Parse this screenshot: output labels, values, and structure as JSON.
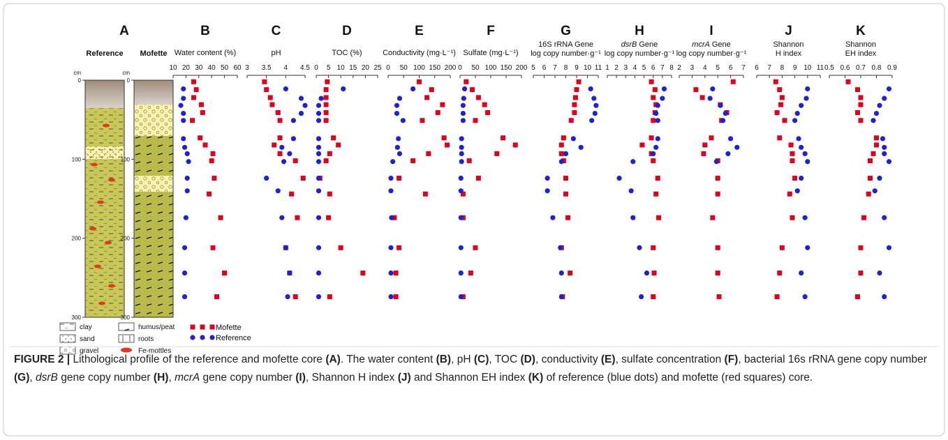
{
  "panel_a": {
    "letter": "A",
    "columns": [
      "Reference",
      "Mofette"
    ],
    "depth_unit": "cm",
    "depth_lim": [
      0,
      300
    ],
    "depth_ticks": [
      0,
      100,
      200,
      300
    ],
    "legend": [
      "clay",
      "sand",
      "gravel",
      "humus/peat",
      "roots",
      "Fe-mottles"
    ]
  },
  "chart_data": [
    {
      "type": "scatter",
      "letter": "B",
      "title_lines": [
        "Water content (%)"
      ],
      "xlim": [
        10,
        60
      ],
      "xticks": [
        10,
        20,
        30,
        40,
        50,
        60
      ],
      "ylim": [
        0,
        300
      ],
      "series": [
        {
          "name": "Mofette",
          "color": "#e2001a",
          "marker": "square",
          "x": [
            26,
            28,
            26,
            32,
            33,
            25,
            31,
            35,
            41,
            40,
            42,
            38,
            47,
            41,
            50,
            44
          ],
          "y": [
            2,
            12,
            22,
            31,
            41,
            51,
            73,
            82,
            93,
            102,
            124,
            144,
            174,
            212,
            244,
            274
          ]
        },
        {
          "name": "Reference",
          "color": "#1f22d4",
          "marker": "circle",
          "x": [
            18,
            18,
            16,
            18,
            18,
            18,
            19,
            21,
            22,
            21,
            21,
            20,
            19,
            19,
            19
          ],
          "y": [
            11,
            23,
            32,
            42,
            51,
            74,
            85,
            93,
            103,
            124,
            140,
            174,
            212,
            244,
            274
          ]
        }
      ]
    },
    {
      "type": "scatter",
      "letter": "C",
      "title_lines": [
        "pH"
      ],
      "xlim": [
        3,
        4.5
      ],
      "xticks": [
        3,
        3.5,
        4,
        4.5
      ],
      "ylim": [
        0,
        300
      ],
      "series": [
        {
          "name": "Mofette",
          "color": "#e2001a",
          "marker": "square",
          "x": [
            3.45,
            3.5,
            3.6,
            3.65,
            3.8,
            3.85,
            3.85,
            3.7,
            3.85,
            4.25,
            4.45,
            4.15,
            4.3,
            4.0,
            4.1,
            4.25
          ],
          "y": [
            2,
            12,
            22,
            31,
            41,
            51,
            73,
            82,
            93,
            102,
            124,
            144,
            174,
            212,
            244,
            274
          ]
        },
        {
          "name": "Reference",
          "color": "#1f22d4",
          "marker": "circle",
          "x": [
            4.0,
            4.4,
            4.5,
            4.4,
            4.2,
            4.2,
            3.9,
            4.1,
            3.95,
            3.5,
            3.8,
            3.9,
            4.0,
            4.1,
            4.05
          ],
          "y": [
            11,
            23,
            32,
            42,
            51,
            74,
            85,
            93,
            103,
            124,
            140,
            174,
            212,
            244,
            274
          ]
        }
      ]
    },
    {
      "type": "scatter",
      "letter": "D",
      "title_lines": [
        "TOC (%)"
      ],
      "xlim": [
        0,
        25
      ],
      "xticks": [
        0,
        5,
        10,
        15,
        20,
        25
      ],
      "ylim": [
        0,
        300
      ],
      "series": [
        {
          "name": "Mofette",
          "color": "#e2001a",
          "marker": "square",
          "x": [
            4.5,
            4,
            4,
            4,
            4,
            4,
            7,
            9,
            5.5,
            4,
            1.5,
            5.5,
            5,
            10,
            19,
            5.5
          ],
          "y": [
            2,
            12,
            22,
            31,
            41,
            51,
            73,
            82,
            93,
            102,
            124,
            144,
            174,
            212,
            244,
            274
          ]
        },
        {
          "name": "Reference",
          "color": "#1f22d4",
          "marker": "circle",
          "x": [
            11,
            2,
            1,
            1,
            1,
            1,
            1,
            1,
            1,
            1,
            1,
            1,
            1,
            1,
            1
          ],
          "y": [
            11,
            23,
            32,
            42,
            51,
            74,
            85,
            93,
            103,
            124,
            140,
            174,
            212,
            244,
            274
          ]
        }
      ]
    },
    {
      "type": "scatter",
      "letter": "E",
      "title_lines": [
        "Conductivity (mg·L⁻¹)"
      ],
      "xlim": [
        0,
        200
      ],
      "xticks": [
        0,
        50,
        100,
        150,
        200
      ],
      "ylim": [
        0,
        300
      ],
      "series": [
        {
          "name": "Mofette",
          "color": "#e2001a",
          "marker": "square",
          "x": [
            100,
            140,
            125,
            175,
            160,
            110,
            180,
            190,
            130,
            80,
            35,
            120,
            20,
            35,
            25,
            25
          ],
          "y": [
            2,
            12,
            22,
            31,
            41,
            51,
            73,
            82,
            93,
            102,
            124,
            144,
            174,
            212,
            244,
            274
          ]
        },
        {
          "name": "Reference",
          "color": "#1f22d4",
          "marker": "circle",
          "x": [
            80,
            37,
            28,
            28,
            48,
            33,
            30,
            37,
            15,
            9,
            9,
            11,
            9,
            9,
            9
          ],
          "y": [
            11,
            23,
            32,
            42,
            51,
            74,
            85,
            93,
            103,
            124,
            140,
            174,
            212,
            244,
            274
          ]
        }
      ]
    },
    {
      "type": "scatter",
      "letter": "F",
      "title_lines": [
        "Sulfate (mg·L⁻¹)"
      ],
      "xlim": [
        0,
        200
      ],
      "xticks": [
        0,
        50,
        100,
        150,
        200
      ],
      "ylim": [
        0,
        300
      ],
      "series": [
        {
          "name": "Mofette",
          "color": "#e2001a",
          "marker": "square",
          "x": [
            20,
            40,
            60,
            80,
            90,
            50,
            140,
            180,
            120,
            30,
            60,
            10,
            10,
            50,
            35,
            10
          ],
          "y": [
            2,
            12,
            22,
            31,
            41,
            51,
            73,
            82,
            93,
            102,
            124,
            144,
            174,
            212,
            244,
            274
          ]
        },
        {
          "name": "Reference",
          "color": "#1f22d4",
          "marker": "circle",
          "x": [
            15,
            12,
            10,
            10,
            10,
            5,
            5,
            5,
            5,
            3,
            3,
            3,
            3,
            3,
            3
          ],
          "y": [
            11,
            23,
            32,
            42,
            51,
            74,
            85,
            93,
            103,
            124,
            140,
            174,
            212,
            244,
            274
          ]
        }
      ]
    },
    {
      "type": "scatter",
      "letter": "G",
      "title_lines": [
        "16S rRNA Gene",
        "log copy number·g⁻¹"
      ],
      "xlim": [
        5,
        11
      ],
      "xticks": [
        5,
        6,
        7,
        8,
        9,
        10,
        11
      ],
      "ylim": [
        0,
        300
      ],
      "series": [
        {
          "name": "Mofette",
          "color": "#e2001a",
          "marker": "square",
          "x": [
            9.2,
            9.0,
            8.9,
            8.8,
            8.8,
            8.5,
            7.8,
            7.6,
            7.6,
            7.8,
            8.0,
            8.0,
            8.2,
            7.6,
            8.4,
            7.7
          ],
          "y": [
            2,
            12,
            22,
            31,
            41,
            51,
            73,
            82,
            93,
            102,
            124,
            144,
            174,
            212,
            244,
            274
          ]
        },
        {
          "name": "Reference",
          "color": "#1f22d4",
          "marker": "circle",
          "x": [
            10.3,
            10.6,
            10.8,
            10.7,
            10.4,
            8.7,
            9.4,
            8.0,
            7.6,
            6.3,
            6.3,
            6.8,
            7.5,
            7.6,
            7.6
          ],
          "y": [
            11,
            23,
            32,
            42,
            51,
            74,
            85,
            93,
            103,
            124,
            140,
            174,
            212,
            244,
            274
          ]
        }
      ]
    },
    {
      "type": "scatter",
      "letter": "H",
      "gene": "dsrB",
      "title_lines": [
        "Gene",
        "log copy number·g⁻¹"
      ],
      "xlim": [
        1,
        8
      ],
      "xticks": [
        1,
        2,
        3,
        4,
        5,
        6,
        7,
        8
      ],
      "ylim": [
        0,
        300
      ],
      "series": [
        {
          "name": "Mofette",
          "color": "#e2001a",
          "marker": "square",
          "x": [
            5.8,
            6.2,
            6.0,
            6.3,
            6.2,
            6.0,
            5.8,
            4.8,
            5.8,
            6.0,
            6.5,
            6.3,
            6.6,
            6.0,
            6.1,
            6.0
          ],
          "y": [
            2,
            12,
            22,
            31,
            41,
            51,
            73,
            82,
            93,
            102,
            124,
            144,
            174,
            212,
            244,
            274
          ]
        },
        {
          "name": "Reference",
          "color": "#1f22d4",
          "marker": "circle",
          "x": [
            7.2,
            7.0,
            6.5,
            6.3,
            6.5,
            6.5,
            6.3,
            6.0,
            3.8,
            2.3,
            3.6,
            3.8,
            4.5,
            5.3,
            4.7
          ],
          "y": [
            11,
            23,
            32,
            42,
            51,
            74,
            85,
            93,
            103,
            124,
            140,
            174,
            212,
            244,
            274
          ]
        }
      ]
    },
    {
      "type": "scatter",
      "letter": "I",
      "gene": "mcrA",
      "title_lines": [
        "Gene",
        "log copy number·g⁻¹"
      ],
      "xlim": [
        2,
        7
      ],
      "xticks": [
        2,
        3,
        4,
        5,
        6,
        7
      ],
      "ylim": [
        0,
        300
      ],
      "series": [
        {
          "name": "Mofette",
          "color": "#e2001a",
          "marker": "square",
          "x": [
            6.2,
            3.3,
            3.8,
            5.2,
            5.7,
            5.3,
            4.5,
            4.0,
            3.9,
            5.0,
            5.0,
            5.0,
            4.6,
            5.0,
            5.0,
            5.1
          ],
          "y": [
            2,
            12,
            22,
            31,
            41,
            51,
            73,
            82,
            93,
            102,
            124,
            144,
            174,
            212,
            244,
            274
          ]
        },
        {
          "name": "Reference",
          "color": "#1f22d4",
          "marker": "circle",
          "x": [
            4.6,
            4.4,
            5.2,
            5.6,
            5.4,
            6.0,
            6.5,
            5.8,
            4.9,
            null,
            null,
            null,
            null,
            null,
            null
          ],
          "y": [
            11,
            23,
            32,
            42,
            51,
            74,
            85,
            93,
            103,
            124,
            140,
            174,
            212,
            244,
            274
          ]
        }
      ]
    },
    {
      "type": "scatter",
      "letter": "J",
      "title_lines": [
        "Shannon",
        "H index"
      ],
      "xlim": [
        6,
        11
      ],
      "xticks": [
        6,
        7,
        8,
        9,
        10,
        11
      ],
      "ylim": [
        0,
        300
      ],
      "series": [
        {
          "name": "Mofette",
          "color": "#e2001a",
          "marker": "square",
          "x": [
            7.5,
            7.8,
            8.0,
            7.9,
            7.6,
            8.2,
            7.8,
            8.7,
            8.8,
            8.8,
            9.0,
            8.6,
            8.8,
            8.0,
            7.8,
            7.6
          ],
          "y": [
            2,
            12,
            22,
            31,
            41,
            51,
            73,
            82,
            93,
            102,
            124,
            144,
            174,
            212,
            244,
            274
          ]
        },
        {
          "name": "Reference",
          "color": "#1f22d4",
          "marker": "circle",
          "x": [
            10.0,
            9.9,
            9.5,
            9.2,
            9.0,
            9.3,
            9.5,
            9.8,
            10.0,
            9.5,
            9.2,
            9.8,
            10.0,
            9.5,
            9.8
          ],
          "y": [
            11,
            23,
            32,
            42,
            51,
            74,
            85,
            93,
            103,
            124,
            140,
            174,
            212,
            244,
            274
          ]
        }
      ]
    },
    {
      "type": "scatter",
      "letter": "K",
      "title_lines": [
        "Shannon",
        "EH index"
      ],
      "xlim": [
        0.5,
        0.9
      ],
      "xticks": [
        0.5,
        0.6,
        0.7,
        0.8,
        0.9
      ],
      "ylim": [
        0,
        300
      ],
      "series": [
        {
          "name": "Mofette",
          "color": "#e2001a",
          "marker": "square",
          "x": [
            0.62,
            0.68,
            0.7,
            0.7,
            0.68,
            0.7,
            0.8,
            0.8,
            0.78,
            0.76,
            0.76,
            0.75,
            0.72,
            0.7,
            0.7,
            0.68
          ],
          "y": [
            2,
            12,
            22,
            31,
            41,
            51,
            73,
            82,
            93,
            102,
            124,
            144,
            174,
            212,
            244,
            274
          ]
        },
        {
          "name": "Reference",
          "color": "#1f22d4",
          "marker": "circle",
          "x": [
            0.88,
            0.85,
            0.82,
            0.8,
            0.78,
            0.84,
            0.85,
            0.85,
            0.88,
            0.82,
            0.79,
            0.85,
            0.88,
            0.82,
            0.85
          ],
          "y": [
            11,
            23,
            32,
            42,
            51,
            74,
            85,
            93,
            103,
            124,
            140,
            174,
            212,
            244,
            274
          ]
        }
      ]
    }
  ],
  "caption": {
    "label": "FIGURE 2 |",
    "segments": [
      {
        "text": " Lithological profile of the reference and mofette core ",
        "style": "n"
      },
      {
        "text": "(A)",
        "style": "b"
      },
      {
        "text": ". The water content ",
        "style": "n"
      },
      {
        "text": "(B)",
        "style": "b"
      },
      {
        "text": ", pH ",
        "style": "n"
      },
      {
        "text": "(C)",
        "style": "b"
      },
      {
        "text": ", TOC ",
        "style": "n"
      },
      {
        "text": "(D)",
        "style": "b"
      },
      {
        "text": ", conductivity ",
        "style": "n"
      },
      {
        "text": "(E)",
        "style": "b"
      },
      {
        "text": ", sulfate concentration ",
        "style": "n"
      },
      {
        "text": "(F)",
        "style": "b"
      },
      {
        "text": ", bacterial 16s rRNA gene copy number ",
        "style": "n"
      },
      {
        "text": "(G)",
        "style": "b"
      },
      {
        "text": ", ",
        "style": "n"
      },
      {
        "text": "dsrB",
        "style": "i"
      },
      {
        "text": " gene copy number ",
        "style": "n"
      },
      {
        "text": "(H)",
        "style": "b"
      },
      {
        "text": ", ",
        "style": "n"
      },
      {
        "text": "mcrA",
        "style": "i"
      },
      {
        "text": " gene copy number ",
        "style": "n"
      },
      {
        "text": "(I)",
        "style": "b"
      },
      {
        "text": ", Shannon H index ",
        "style": "n"
      },
      {
        "text": "(J)",
        "style": "b"
      },
      {
        "text": " and Shannon EH index ",
        "style": "n"
      },
      {
        "text": "(K)",
        "style": "b"
      },
      {
        "text": " of reference (blue dots) and mofette (red squares) core.",
        "style": "n"
      }
    ]
  }
}
